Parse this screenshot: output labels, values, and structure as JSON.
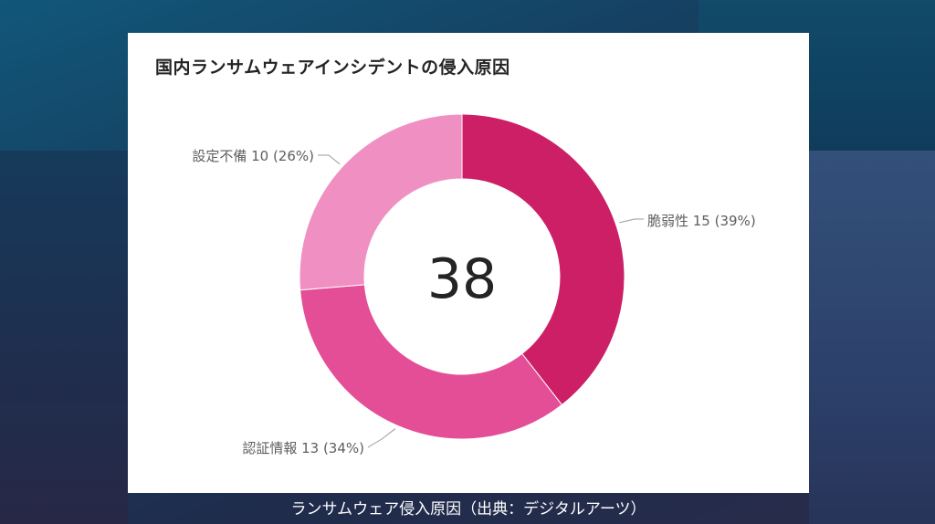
{
  "chart_data": {
    "type": "pie",
    "variant": "donut",
    "title": "国内ランサムウェアインシデントの侵入原因",
    "center_label": "38",
    "slices": [
      {
        "label": "脆弱性",
        "value": 15,
        "percent": "39%",
        "color": "#cc1f66"
      },
      {
        "label": "認証情報",
        "value": 13,
        "percent": "34%",
        "color": "#e34e97"
      },
      {
        "label": "設定不備",
        "value": 10,
        "percent": "26%",
        "color": "#f090c2"
      }
    ],
    "data_labels": [
      "脆弱性 15 (39%)",
      "認証情報 13 (34%)",
      "設定不備 10 (26%)"
    ]
  },
  "caption": "ランサムウェア侵入原因（出典：デジタルアーツ）"
}
